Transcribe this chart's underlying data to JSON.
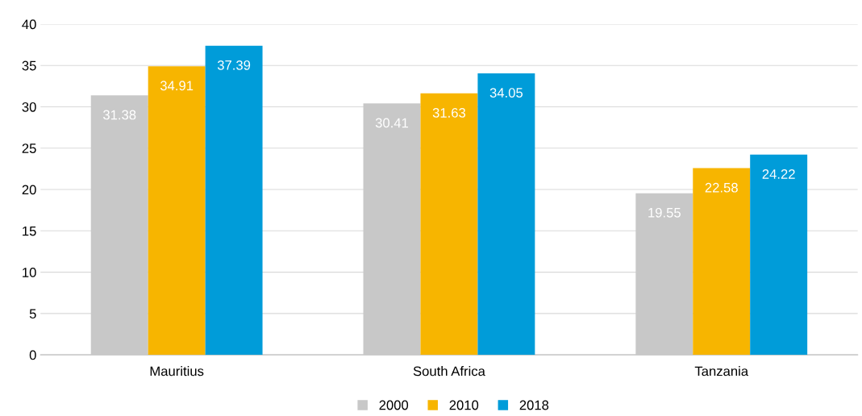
{
  "chart_data": {
    "type": "bar",
    "categories": [
      "Mauritius",
      "South Africa",
      "Tanzania"
    ],
    "series": [
      {
        "name": "2000",
        "color": "#c8c8c8",
        "values": [
          31.38,
          30.41,
          19.55
        ]
      },
      {
        "name": "2010",
        "color": "#f7b500",
        "values": [
          34.91,
          31.63,
          22.58
        ]
      },
      {
        "name": "2018",
        "color": "#009cd9",
        "values": [
          37.39,
          34.05,
          24.22
        ]
      }
    ],
    "ylim": [
      0,
      40
    ],
    "yticks": [
      0,
      5,
      10,
      15,
      20,
      25,
      30,
      35,
      40
    ],
    "grid": "y",
    "legend": "bottom",
    "data_labels": true
  }
}
